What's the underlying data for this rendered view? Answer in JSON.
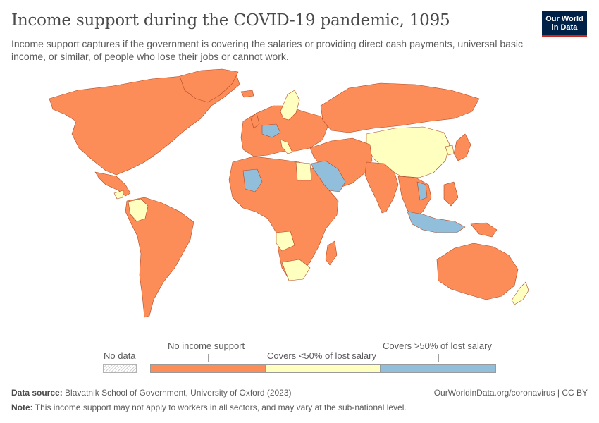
{
  "header": {
    "title": "Income support during the COVID-19 pandemic, 1095",
    "subtitle": "Income support captures if the government is covering the salaries or providing direct cash payments, universal basic income, or similar, of people who lose their jobs or cannot work."
  },
  "logo": {
    "line1": "Our World",
    "line2": "in Data",
    "bg_color": "#002147",
    "accent_color": "#ce261e"
  },
  "colors": {
    "none": "#fc8d59",
    "partial": "#ffffbf",
    "full": "#91bfdb",
    "border": "#b04a25",
    "nodata": "#e0e0e0"
  },
  "legend": {
    "nodata_label": "No data",
    "categories": [
      {
        "label": "No income support",
        "color": "#fc8d59"
      },
      {
        "label": "Covers <50% of lost salary",
        "color": "#ffffbf"
      },
      {
        "label": "Covers >50% of lost salary",
        "color": "#91bfdb"
      }
    ]
  },
  "footer": {
    "source_label": "Data source:",
    "source_text": "Blavatnik School of Government, University of Oxford (2023)",
    "url": "OurWorldinData.org/coronavirus | CC BY",
    "note_label": "Note:",
    "note_text": "This income support may not apply to workers in all sectors, and may vary at the sub-national level."
  }
}
